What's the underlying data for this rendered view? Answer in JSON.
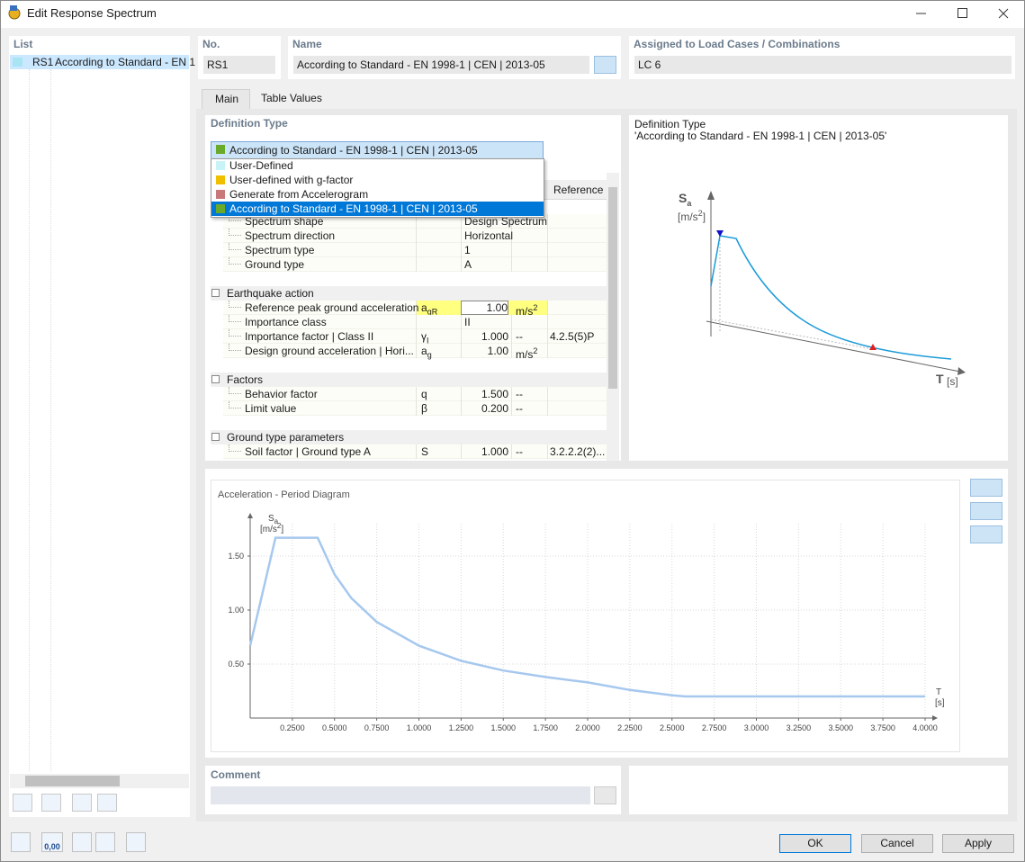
{
  "window": {
    "title": "Edit Response Spectrum"
  },
  "list": {
    "header": "List",
    "items": [
      {
        "id": "RS1",
        "label": "According to Standard - EN 1",
        "color": "#a8e4f4"
      }
    ]
  },
  "number": {
    "label": "No.",
    "value": "RS1"
  },
  "name": {
    "label": "Name",
    "value": "According to Standard - EN 1998-1 | CEN | 2013-05"
  },
  "assigned": {
    "label": "Assigned to Load Cases / Combinations",
    "value": "LC 6"
  },
  "tabs": [
    {
      "label": "Main",
      "selected": true
    },
    {
      "label": "Table Values"
    }
  ],
  "definition_type": {
    "label": "Definition Type",
    "selected": "According to Standard - EN 1998-1 | CEN | 2013-05",
    "selected_color": "#6aaa2a",
    "options": [
      {
        "label": "User-Defined",
        "color": "#c8f4f8"
      },
      {
        "label": "User-defined with g-factor",
        "color": "#f0c000"
      },
      {
        "label": "Generate from Accelerogram",
        "color": "#c87878"
      },
      {
        "label": "According to Standard - EN 1998-1 | CEN | 2013-05",
        "color": "#6aaa2a",
        "highlighted": true
      }
    ]
  },
  "parameters": {
    "reference_header": "Reference",
    "sections": [
      {
        "rows": [
          {
            "name": "Spectrum shape",
            "value": "Design Spectrum"
          },
          {
            "name": "Spectrum direction",
            "value": "Horizontal"
          },
          {
            "name": "Spectrum type",
            "value": "1"
          },
          {
            "name": "Ground type",
            "value": "A"
          }
        ]
      },
      {
        "title": "Earthquake action",
        "rows": [
          {
            "name": "Reference peak ground acceleration",
            "symbol": [
              "a",
              "gR"
            ],
            "value": "1.00",
            "unit": [
              "m/s",
              "2"
            ],
            "highlight": true
          },
          {
            "name": "Importance class",
            "value": "II"
          },
          {
            "name": "Importance factor | Class II",
            "symbol": [
              "γ",
              "I"
            ],
            "value": "1.000",
            "unit": [
              "--"
            ],
            "reference": "4.2.5(5)P"
          },
          {
            "name": "Design ground acceleration | Hori...",
            "symbol": [
              "a",
              "g"
            ],
            "value": "1.00",
            "unit": [
              "m/s",
              "2"
            ]
          }
        ]
      },
      {
        "title": "Factors",
        "rows": [
          {
            "name": "Behavior factor",
            "symbol": [
              "q"
            ],
            "value": "1.500",
            "unit": [
              "--"
            ]
          },
          {
            "name": "Limit value",
            "symbol": [
              "β"
            ],
            "value": "0.200",
            "unit": [
              "--"
            ]
          }
        ]
      },
      {
        "title": "Ground type parameters",
        "rows": [
          {
            "name": "Soil factor | Ground type A",
            "symbol": [
              "S"
            ],
            "value": "1.000",
            "unit": [
              "--"
            ],
            "reference": "3.2.2.2(2)..."
          }
        ]
      }
    ]
  },
  "preview": {
    "title": "Definition Type",
    "subtitle": "'According to Standard - EN 1998-1 | CEN | 2013-05'",
    "y_label": [
      "S",
      "a"
    ],
    "y_unit": [
      "[m/s",
      "2",
      "]"
    ],
    "x_label": "T",
    "x_unit": "[s]"
  },
  "chart_data": {
    "type": "line",
    "title": "Acceleration - Period Diagram",
    "y_label": [
      "S",
      "a"
    ],
    "y_unit": [
      "[m/s",
      "2",
      "]"
    ],
    "x_label": "T",
    "x_unit": "[s]",
    "x": [
      0,
      0.15,
      0.4,
      0.5,
      0.6,
      0.75,
      1.0,
      1.25,
      1.5,
      1.75,
      2.0,
      2.25,
      2.5,
      2.58,
      3.0,
      4.0
    ],
    "series": [
      {
        "color": "#a6c8ee",
        "values": [
          0.67,
          1.67,
          1.67,
          1.33,
          1.11,
          0.89,
          0.67,
          0.53,
          0.44,
          0.38,
          0.33,
          0.26,
          0.21,
          0.2,
          0.2,
          0.2
        ]
      }
    ],
    "xlim": [
      0,
      4
    ],
    "ylim": [
      0,
      1.8
    ],
    "xticks": [
      {
        "value": 0.25,
        "label": "0.2500"
      },
      {
        "value": 0.5,
        "label": "0.5000"
      },
      {
        "value": 0.75,
        "label": "0.7500"
      },
      {
        "value": 1.0,
        "label": "1.0000"
      },
      {
        "value": 1.25,
        "label": "1.2500"
      },
      {
        "value": 1.5,
        "label": "1.5000"
      },
      {
        "value": 1.75,
        "label": "1.7500"
      },
      {
        "value": 2.0,
        "label": "2.0000"
      },
      {
        "value": 2.25,
        "label": "2.2500"
      },
      {
        "value": 2.5,
        "label": "2.5000"
      },
      {
        "value": 2.75,
        "label": "2.7500"
      },
      {
        "value": 3.0,
        "label": "3.0000"
      },
      {
        "value": 3.25,
        "label": "3.2500"
      },
      {
        "value": 3.5,
        "label": "3.5000"
      },
      {
        "value": 3.75,
        "label": "3.7500"
      },
      {
        "value": 4.0,
        "label": "4.0000"
      }
    ],
    "yticks": [
      {
        "value": 0.5,
        "label": "0.50"
      },
      {
        "value": 1.0,
        "label": "1.00"
      },
      {
        "value": 1.5,
        "label": "1.50"
      }
    ],
    "grid": true
  },
  "comment": {
    "label": "Comment"
  },
  "toolbar": {
    "decimal_icon": "0,00"
  },
  "buttons": [
    "OK",
    "Cancel",
    "Apply"
  ]
}
